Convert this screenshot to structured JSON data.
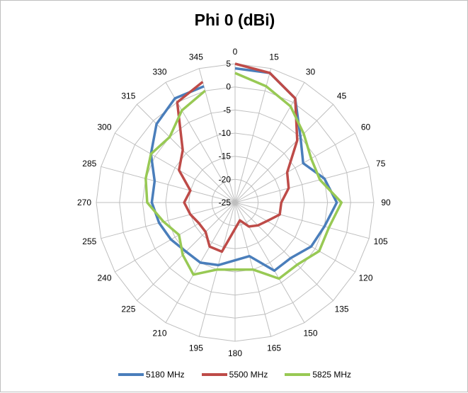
{
  "chart_data": {
    "type": "radar",
    "title": "Phi 0 (dBi)",
    "angles": [
      0,
      15,
      30,
      45,
      60,
      75,
      90,
      105,
      120,
      135,
      150,
      165,
      180,
      195,
      210,
      225,
      240,
      255,
      270,
      285,
      300,
      315,
      330,
      345
    ],
    "angle_labels": [
      "0",
      "15",
      "30",
      "45",
      "60",
      "75",
      "90",
      "105",
      "120",
      "135",
      "150",
      "165",
      "180",
      "195",
      "210",
      "225",
      "240",
      "255",
      "270",
      "285",
      "300",
      "315",
      "330",
      "345"
    ],
    "radial_ticks": [
      5,
      0,
      -5,
      -10,
      -15,
      -20,
      -25
    ],
    "radial_tick_labels": [
      "5",
      "0",
      "-5",
      "-10",
      "-15",
      "-20",
      "-25"
    ],
    "rlim": [
      -25,
      5
    ],
    "grid": true,
    "legend_position": "bottom",
    "series": [
      {
        "name": "5180 MHz",
        "color": "#4a7ebb",
        "values": [
          4,
          4,
          1,
          -5,
          -8,
          -5,
          -3,
          -5,
          -6,
          -8,
          -8,
          -13,
          null,
          -11,
          -10,
          -10,
          -9,
          -8,
          -7,
          -7,
          -4,
          -1,
          1,
          1
        ]
      },
      {
        "name": "5500 MHz",
        "color": "#be4b48",
        "values": [
          5,
          4,
          1,
          -6,
          -12,
          -13,
          -15,
          -15,
          -17,
          -18,
          -19,
          -21,
          null,
          -14,
          -14,
          -16,
          -16,
          -15,
          -14,
          -15,
          -11,
          -9,
          0,
          2
        ]
      },
      {
        "name": "5825 MHz",
        "color": "#98c954",
        "values": [
          3,
          1,
          -1,
          -4,
          -6,
          -6,
          -2,
          -4,
          -4,
          -6,
          -6,
          -10,
          null,
          -10,
          -7,
          -9,
          -11,
          -9,
          -6,
          -5,
          -4,
          -5,
          -2,
          0
        ]
      }
    ]
  }
}
